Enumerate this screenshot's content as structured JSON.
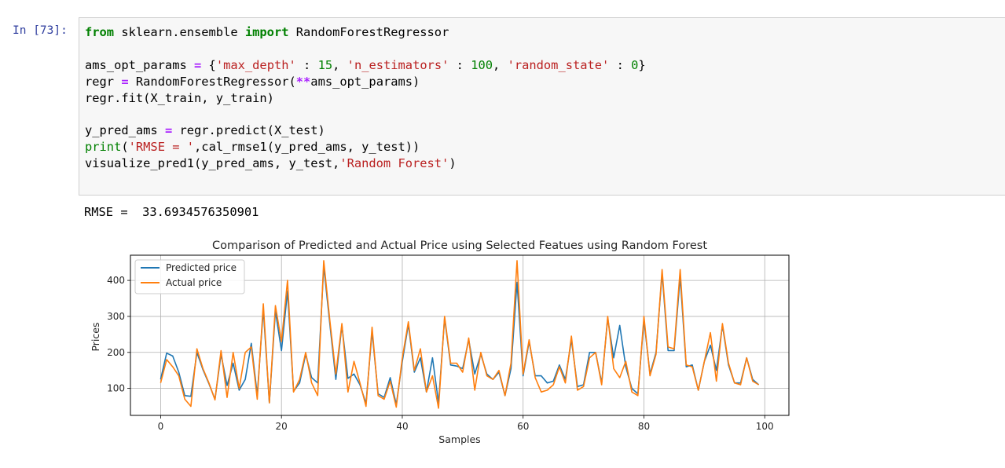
{
  "cell": {
    "prompt": "In [73]:",
    "code_lines": [
      [
        {
          "t": "from",
          "c": "kw"
        },
        {
          "t": " sklearn.ensemble ",
          "c": ""
        },
        {
          "t": "import",
          "c": "kw"
        },
        {
          "t": " RandomForestRegressor",
          "c": ""
        }
      ],
      [],
      [
        {
          "t": "ams_opt_params ",
          "c": ""
        },
        {
          "t": "=",
          "c": "op"
        },
        {
          "t": " {",
          "c": ""
        },
        {
          "t": "'max_depth'",
          "c": "str"
        },
        {
          "t": " : ",
          "c": ""
        },
        {
          "t": "15",
          "c": "num"
        },
        {
          "t": ", ",
          "c": ""
        },
        {
          "t": "'n_estimators'",
          "c": "str"
        },
        {
          "t": " : ",
          "c": ""
        },
        {
          "t": "100",
          "c": "num"
        },
        {
          "t": ", ",
          "c": ""
        },
        {
          "t": "'random_state'",
          "c": "str"
        },
        {
          "t": " : ",
          "c": ""
        },
        {
          "t": "0",
          "c": "num"
        },
        {
          "t": "}",
          "c": ""
        }
      ],
      [
        {
          "t": "regr ",
          "c": ""
        },
        {
          "t": "=",
          "c": "op"
        },
        {
          "t": " RandomForestRegressor(",
          "c": ""
        },
        {
          "t": "**",
          "c": "op"
        },
        {
          "t": "ams_opt_params)",
          "c": ""
        }
      ],
      [
        {
          "t": "regr.fit(X_train, y_train)",
          "c": ""
        }
      ],
      [],
      [
        {
          "t": "y_pred_ams ",
          "c": ""
        },
        {
          "t": "=",
          "c": "op"
        },
        {
          "t": " regr.predict(X_test)",
          "c": ""
        }
      ],
      [
        {
          "t": "print",
          "c": "kw2"
        },
        {
          "t": "(",
          "c": ""
        },
        {
          "t": "'RMSE = '",
          "c": "str"
        },
        {
          "t": ",cal_rmse1(y_pred_ams, y_test))",
          "c": ""
        }
      ],
      [
        {
          "t": "visualize_pred1(y_pred_ams, y_test,",
          "c": ""
        },
        {
          "t": "'Random Forest'",
          "c": "str"
        },
        {
          "t": ")",
          "c": ""
        }
      ]
    ]
  },
  "output": {
    "text": "RMSE =  33.6934576350901"
  },
  "chart_data": {
    "type": "line",
    "title": "Comparison of Predicted and Actual Price using Selected Featues using Random Forest",
    "xlabel": "Samples",
    "ylabel": "Prices",
    "xlim": [
      -5,
      104
    ],
    "ylim": [
      25,
      470
    ],
    "xticks": [
      0,
      20,
      40,
      60,
      80,
      100
    ],
    "yticks": [
      100,
      200,
      300,
      400
    ],
    "grid": true,
    "legend_position": "top-left",
    "series": [
      {
        "name": "Predicted price",
        "color": "#1f77b4",
        "values": [
          125,
          198,
          190,
          145,
          80,
          78,
          200,
          152,
          113,
          70,
          195,
          108,
          170,
          95,
          125,
          225,
          82,
          320,
          60,
          315,
          205,
          370,
          92,
          115,
          195,
          130,
          115,
          440,
          280,
          125,
          275,
          128,
          140,
          110,
          58,
          258,
          85,
          75,
          130,
          55,
          175,
          278,
          145,
          185,
          90,
          185,
          60,
          295,
          165,
          162,
          155,
          235,
          140,
          195,
          140,
          125,
          145,
          80,
          155,
          395,
          135,
          230,
          135,
          135,
          115,
          120,
          165,
          125,
          235,
          105,
          110,
          200,
          200,
          115,
          295,
          185,
          275,
          160,
          100,
          85,
          290,
          140,
          200,
          420,
          205,
          205,
          410,
          160,
          165,
          95,
          175,
          220,
          150,
          275,
          165,
          115,
          115,
          185,
          125,
          110
        ]
      },
      {
        "name": "Actual price",
        "color": "#ff7f0e",
        "values": [
          115,
          180,
          160,
          135,
          70,
          50,
          210,
          155,
          115,
          68,
          205,
          75,
          200,
          100,
          200,
          215,
          70,
          335,
          60,
          330,
          230,
          400,
          90,
          125,
          200,
          115,
          80,
          455,
          290,
          140,
          280,
          90,
          175,
          115,
          50,
          270,
          80,
          70,
          120,
          48,
          185,
          285,
          150,
          210,
          90,
          135,
          45,
          300,
          170,
          170,
          145,
          240,
          95,
          200,
          135,
          125,
          150,
          80,
          170,
          455,
          140,
          235,
          130,
          90,
          95,
          110,
          160,
          115,
          245,
          95,
          105,
          185,
          200,
          110,
          300,
          155,
          130,
          175,
          90,
          80,
          300,
          135,
          195,
          430,
          215,
          210,
          430,
          165,
          160,
          95,
          175,
          255,
          120,
          280,
          170,
          115,
          110,
          185,
          120,
          110
        ]
      }
    ]
  }
}
